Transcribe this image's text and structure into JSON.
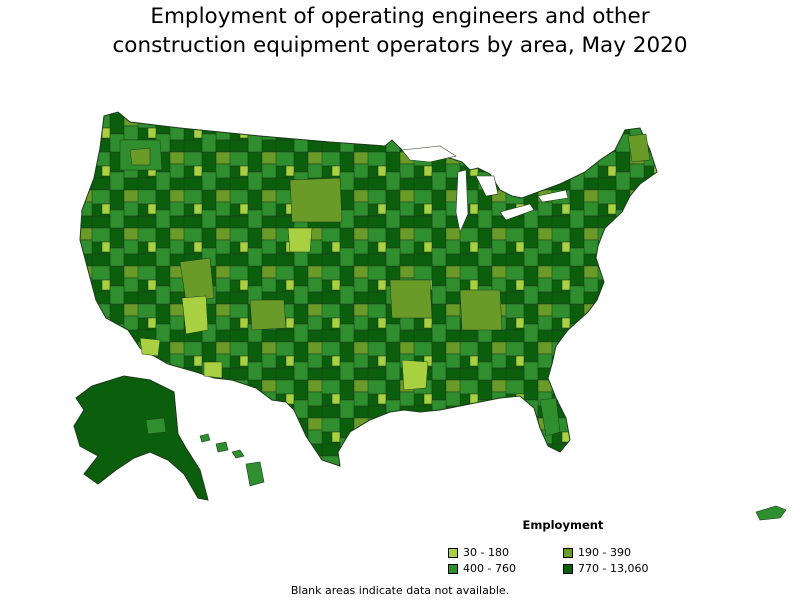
{
  "title_line1": "Employment of operating engineers and other",
  "title_line2": "construction equipment operators by area, May 2020",
  "legend": {
    "title": "Employment",
    "items": [
      {
        "label": "30 - 180",
        "color": "#a8d040"
      },
      {
        "label": "190 - 390",
        "color": "#6a9a28"
      },
      {
        "label": "400 - 760",
        "color": "#2f8f2f"
      },
      {
        "label": "770 - 13,060",
        "color": "#0b5e0b"
      }
    ]
  },
  "footnote": "Blank areas indicate data not available.",
  "map_regions": [
    {
      "name": "alaska",
      "class": 3
    },
    {
      "name": "hawaii",
      "class": 2
    },
    {
      "name": "puerto-rico",
      "class": 2
    }
  ]
}
